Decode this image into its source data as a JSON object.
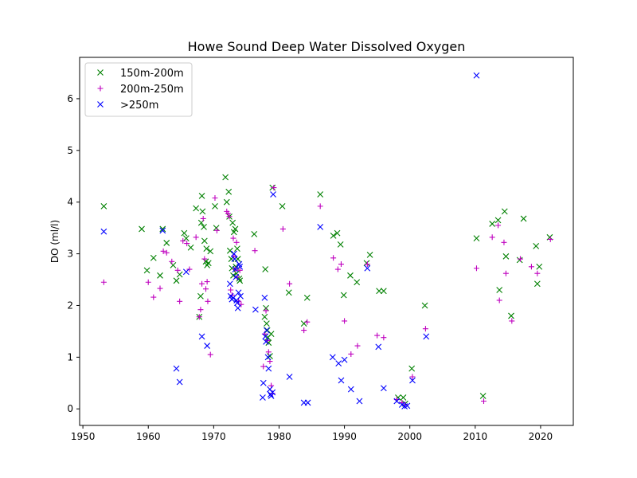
{
  "chart_data": {
    "type": "scatter",
    "title": "Howe Sound Deep Water Dissolved Oxygen",
    "xlabel": "",
    "ylabel": "DO (ml/l)",
    "xlim": [
      1949.5,
      2025
    ],
    "ylim": [
      -0.32,
      6.8
    ],
    "xticks": [
      1950,
      1960,
      1970,
      1980,
      1990,
      2000,
      2010,
      2020
    ],
    "yticks": [
      0,
      1,
      2,
      3,
      4,
      5,
      6
    ],
    "grid": false,
    "legend_position": "top-left",
    "series": [
      {
        "name": "150m-200m",
        "marker": "x",
        "color": "#008000",
        "points": [
          [
            1953.2,
            3.92
          ],
          [
            1959.0,
            3.48
          ],
          [
            1959.8,
            2.68
          ],
          [
            1960.8,
            2.92
          ],
          [
            1961.8,
            2.58
          ],
          [
            1962.2,
            3.48
          ],
          [
            1962.8,
            3.21
          ],
          [
            1963.8,
            2.78
          ],
          [
            1964.3,
            2.48
          ],
          [
            1964.8,
            2.6
          ],
          [
            1965.5,
            3.4
          ],
          [
            1965.8,
            3.3
          ],
          [
            1966.5,
            3.12
          ],
          [
            1967.3,
            3.88
          ],
          [
            1967.8,
            1.78
          ],
          [
            1968.0,
            2.18
          ],
          [
            1968.1,
            3.6
          ],
          [
            1968.2,
            4.12
          ],
          [
            1968.3,
            3.82
          ],
          [
            1968.5,
            3.52
          ],
          [
            1968.6,
            3.25
          ],
          [
            1968.8,
            2.85
          ],
          [
            1968.9,
            3.1
          ],
          [
            1969.0,
            2.78
          ],
          [
            1969.2,
            2.82
          ],
          [
            1969.5,
            3.05
          ],
          [
            1970.2,
            3.92
          ],
          [
            1970.4,
            3.5
          ],
          [
            1971.8,
            4.48
          ],
          [
            1972.0,
            4.0
          ],
          [
            1972.3,
            4.2
          ],
          [
            1972.4,
            3.72
          ],
          [
            1972.5,
            3.06
          ],
          [
            1972.7,
            2.9
          ],
          [
            1972.8,
            2.72
          ],
          [
            1972.9,
            3.6
          ],
          [
            1973.0,
            2.58
          ],
          [
            1973.1,
            3.42
          ],
          [
            1973.3,
            3.48
          ],
          [
            1973.4,
            2.75
          ],
          [
            1973.5,
            2.62
          ],
          [
            1973.6,
            3.1
          ],
          [
            1973.7,
            2.9
          ],
          [
            1973.9,
            2.52
          ],
          [
            1974.0,
            2.48
          ],
          [
            1976.2,
            3.38
          ],
          [
            1977.8,
            1.78
          ],
          [
            1977.9,
            2.7
          ],
          [
            1978.0,
            1.95
          ],
          [
            1978.1,
            1.65
          ],
          [
            1978.2,
            1.52
          ],
          [
            1978.3,
            1.38
          ],
          [
            1978.4,
            1.28
          ],
          [
            1978.6,
            1.02
          ],
          [
            1978.8,
            1.45
          ],
          [
            1979.0,
            4.28
          ],
          [
            1980.5,
            3.92
          ],
          [
            1981.5,
            2.25
          ],
          [
            1983.8,
            1.65
          ],
          [
            1984.3,
            2.15
          ],
          [
            1986.3,
            4.15
          ],
          [
            1988.3,
            3.35
          ],
          [
            1988.9,
            3.4
          ],
          [
            1989.4,
            3.18
          ],
          [
            1989.9,
            2.2
          ],
          [
            1990.9,
            2.58
          ],
          [
            1991.9,
            2.45
          ],
          [
            1993.4,
            2.82
          ],
          [
            1993.9,
            2.98
          ],
          [
            1995.3,
            2.28
          ],
          [
            1996.0,
            2.28
          ],
          [
            1998.2,
            0.22
          ],
          [
            1999.0,
            0.22
          ],
          [
            1999.3,
            0.1
          ],
          [
            2000.3,
            0.78
          ],
          [
            2002.3,
            2.0
          ],
          [
            2010.2,
            3.3
          ],
          [
            2011.2,
            0.25
          ],
          [
            2012.6,
            3.58
          ],
          [
            2013.5,
            3.65
          ],
          [
            2013.7,
            2.3
          ],
          [
            2014.5,
            3.82
          ],
          [
            2014.7,
            2.95
          ],
          [
            2015.5,
            1.8
          ],
          [
            2016.8,
            2.88
          ],
          [
            2017.4,
            3.68
          ],
          [
            2019.3,
            3.15
          ],
          [
            2019.5,
            2.42
          ],
          [
            2019.8,
            2.75
          ],
          [
            2021.4,
            3.32
          ]
        ]
      },
      {
        "name": "200m-250m",
        "marker": "+",
        "color": "#bf00bf",
        "points": [
          [
            1953.2,
            2.45
          ],
          [
            1960.0,
            2.45
          ],
          [
            1960.8,
            2.16
          ],
          [
            1961.8,
            2.33
          ],
          [
            1962.3,
            3.05
          ],
          [
            1962.8,
            3.02
          ],
          [
            1963.6,
            2.85
          ],
          [
            1964.5,
            2.68
          ],
          [
            1964.8,
            2.08
          ],
          [
            1965.3,
            3.25
          ],
          [
            1965.9,
            3.2
          ],
          [
            1966.3,
            2.7
          ],
          [
            1967.3,
            3.32
          ],
          [
            1967.8,
            1.78
          ],
          [
            1968.0,
            1.92
          ],
          [
            1968.2,
            2.42
          ],
          [
            1968.4,
            3.68
          ],
          [
            1968.6,
            2.9
          ],
          [
            1968.8,
            2.32
          ],
          [
            1969.0,
            2.46
          ],
          [
            1969.1,
            2.08
          ],
          [
            1969.5,
            1.05
          ],
          [
            1970.2,
            4.08
          ],
          [
            1970.5,
            3.45
          ],
          [
            1972.0,
            3.82
          ],
          [
            1972.2,
            3.78
          ],
          [
            1972.4,
            3.72
          ],
          [
            1972.6,
            2.3
          ],
          [
            1972.8,
            2.2
          ],
          [
            1973.0,
            3.3
          ],
          [
            1973.1,
            2.95
          ],
          [
            1973.3,
            2.7
          ],
          [
            1973.5,
            3.22
          ],
          [
            1973.6,
            2.55
          ],
          [
            1973.8,
            2.08
          ],
          [
            1974.0,
            2.68
          ],
          [
            1974.2,
            2.02
          ],
          [
            1976.3,
            3.06
          ],
          [
            1977.6,
            0.82
          ],
          [
            1977.8,
            1.45
          ],
          [
            1978.0,
            1.9
          ],
          [
            1978.2,
            1.32
          ],
          [
            1978.4,
            1.1
          ],
          [
            1978.6,
            0.92
          ],
          [
            1978.8,
            0.45
          ],
          [
            1979.0,
            0.3
          ],
          [
            1979.2,
            4.28
          ],
          [
            1980.6,
            3.48
          ],
          [
            1981.6,
            2.42
          ],
          [
            1983.8,
            1.52
          ],
          [
            1984.3,
            1.68
          ],
          [
            1986.3,
            3.92
          ],
          [
            1988.3,
            2.92
          ],
          [
            1989.0,
            2.7
          ],
          [
            1989.5,
            2.8
          ],
          [
            1990.0,
            1.7
          ],
          [
            1991.0,
            1.06
          ],
          [
            1992.0,
            1.22
          ],
          [
            1993.5,
            2.8
          ],
          [
            1995.0,
            1.42
          ],
          [
            1996.0,
            1.38
          ],
          [
            1998.0,
            0.18
          ],
          [
            1998.8,
            0.12
          ],
          [
            1999.3,
            0.08
          ],
          [
            2000.4,
            0.62
          ],
          [
            2002.4,
            1.55
          ],
          [
            2010.2,
            2.72
          ],
          [
            2011.3,
            0.15
          ],
          [
            2012.6,
            3.32
          ],
          [
            2013.5,
            3.55
          ],
          [
            2013.7,
            2.1
          ],
          [
            2014.4,
            3.22
          ],
          [
            2014.7,
            2.62
          ],
          [
            2015.6,
            1.7
          ],
          [
            2016.9,
            2.9
          ],
          [
            2018.6,
            2.75
          ],
          [
            2019.5,
            2.62
          ],
          [
            2021.5,
            3.28
          ]
        ]
      },
      {
        "name": ">250m",
        "marker": "x",
        "color": "#0000ff",
        "points": [
          [
            1953.2,
            3.43
          ],
          [
            1962.2,
            3.45
          ],
          [
            1964.3,
            0.78
          ],
          [
            1964.8,
            0.52
          ],
          [
            1965.8,
            2.65
          ],
          [
            1968.2,
            1.4
          ],
          [
            1969.0,
            1.22
          ],
          [
            1972.5,
            2.42
          ],
          [
            1972.6,
            2.18
          ],
          [
            1972.8,
            2.12
          ],
          [
            1973.0,
            2.15
          ],
          [
            1973.1,
            3.0
          ],
          [
            1973.2,
            2.9
          ],
          [
            1973.3,
            2.7
          ],
          [
            1973.4,
            2.55
          ],
          [
            1973.5,
            2.1
          ],
          [
            1973.6,
            2.05
          ],
          [
            1973.7,
            1.95
          ],
          [
            1973.8,
            2.25
          ],
          [
            1973.9,
            2.8
          ],
          [
            1974.0,
            2.75
          ],
          [
            1974.1,
            2.18
          ],
          [
            1976.4,
            1.92
          ],
          [
            1977.5,
            0.22
          ],
          [
            1977.6,
            0.5
          ],
          [
            1977.8,
            2.15
          ],
          [
            1977.9,
            1.4
          ],
          [
            1978.0,
            1.3
          ],
          [
            1978.1,
            1.52
          ],
          [
            1978.3,
            1.0
          ],
          [
            1978.4,
            0.78
          ],
          [
            1978.6,
            0.38
          ],
          [
            1978.7,
            0.28
          ],
          [
            1978.8,
            0.25
          ],
          [
            1979.0,
            0.32
          ],
          [
            1979.1,
            4.15
          ],
          [
            1981.6,
            0.62
          ],
          [
            1983.8,
            0.12
          ],
          [
            1984.4,
            0.12
          ],
          [
            1986.3,
            3.52
          ],
          [
            1988.2,
            1.0
          ],
          [
            1989.1,
            0.88
          ],
          [
            1989.5,
            0.55
          ],
          [
            1990.0,
            0.95
          ],
          [
            1991.0,
            0.38
          ],
          [
            1992.3,
            0.15
          ],
          [
            1993.5,
            2.72
          ],
          [
            1995.2,
            1.2
          ],
          [
            1996.0,
            0.4
          ],
          [
            1998.0,
            0.15
          ],
          [
            1998.8,
            0.08
          ],
          [
            1999.2,
            0.05
          ],
          [
            1999.6,
            0.06
          ],
          [
            2000.4,
            0.55
          ],
          [
            2002.5,
            1.4
          ],
          [
            2010.2,
            6.45
          ]
        ]
      }
    ]
  }
}
